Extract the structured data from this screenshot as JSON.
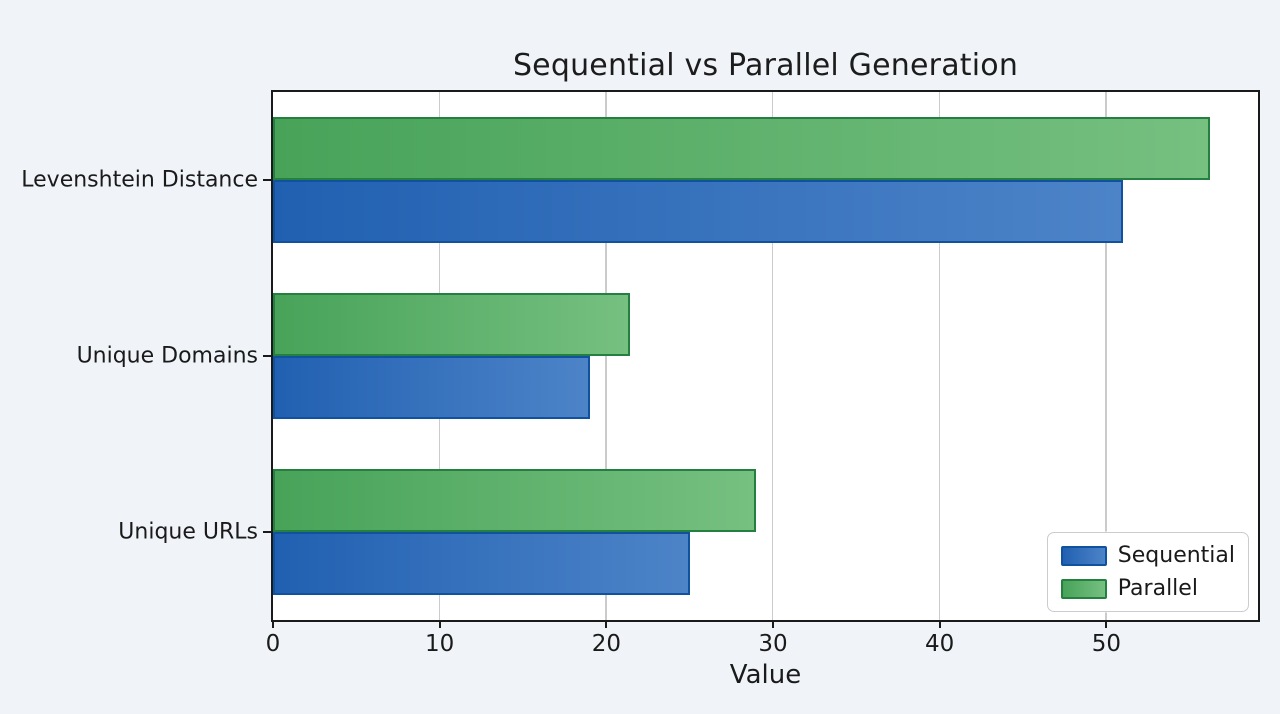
{
  "title": "Sequential vs Parallel Generation",
  "xlabel": "Value",
  "colors": {
    "background": "#f0f4f8",
    "plot_background": "#ffffff",
    "sequential_fill": "#2160b1",
    "sequential_edge": "#11529f",
    "parallel_fill": "#48a359",
    "parallel_edge": "#257f40",
    "gridline": "#cbcbcb",
    "spine": "#1a1a1a"
  },
  "chart_data": {
    "type": "bar",
    "orientation": "horizontal",
    "title": "Sequential vs Parallel Generation",
    "xlabel": "Value",
    "ylabel": "",
    "categories": [
      "Levenshtein Distance",
      "Unique Domains",
      "Unique URLs"
    ],
    "series": [
      {
        "name": "Sequential",
        "color": "#2160b1",
        "values": [
          51,
          19,
          25
        ]
      },
      {
        "name": "Parallel",
        "color": "#48a359",
        "values": [
          56.2,
          21.4,
          29
        ]
      }
    ],
    "xticks": [
      0,
      10,
      20,
      30,
      40,
      50
    ],
    "xtick_labels": [
      "0",
      "10",
      "20",
      "30",
      "40",
      "50"
    ],
    "xlim": [
      0,
      59.1
    ],
    "grid": "vertical",
    "legend_position": "lower right",
    "legend_entries": [
      "Sequential",
      "Parallel"
    ]
  }
}
